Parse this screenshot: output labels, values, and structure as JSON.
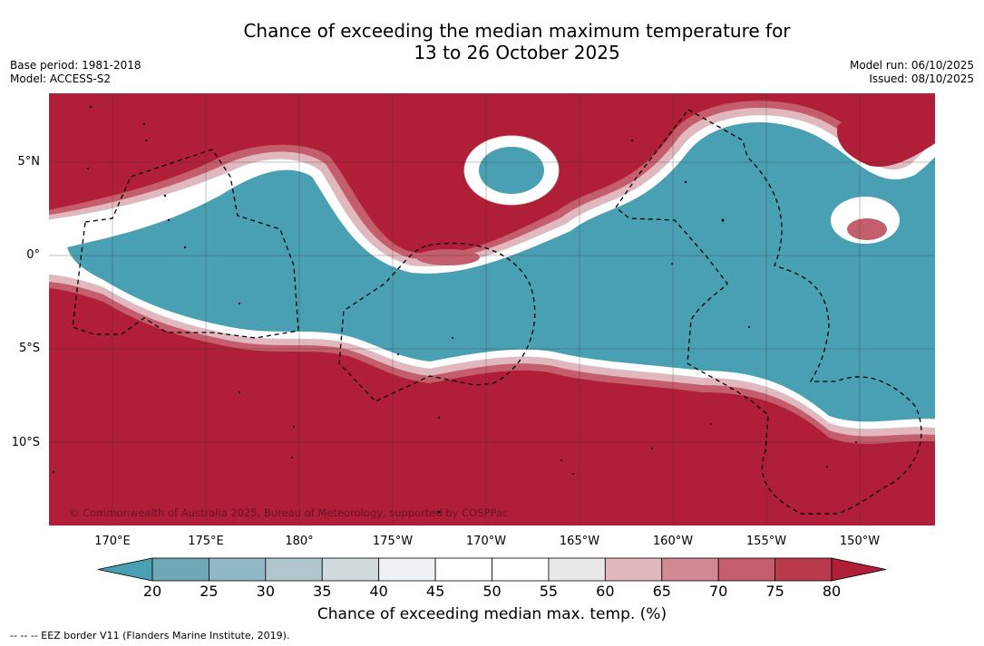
{
  "title": {
    "line1": "Chance of exceeding the median maximum temperature for",
    "line2": "13 to 26 October 2025"
  },
  "meta": {
    "base_period": "Base period: 1981-2018",
    "model": "Model: ACCESS-S2",
    "model_run": "Model run: 06/10/2025",
    "issued": "Issued: 08/10/2025"
  },
  "axes": {
    "lat_labels": [
      "5°N",
      "0°",
      "5°S",
      "10°S"
    ],
    "lon_labels": [
      "170°E",
      "175°E",
      "180°",
      "175°W",
      "170°W",
      "165°W",
      "160°W",
      "155°W",
      "150°W"
    ]
  },
  "copyright": "© Commonwealth of Australia 2025, Bureau of Meteorology, supported by COSPPac",
  "colorbar": {
    "ticks": [
      "20",
      "25",
      "30",
      "35",
      "40",
      "45",
      "50",
      "55",
      "60",
      "65",
      "70",
      "75",
      "80"
    ],
    "colors": [
      "#4aa0b3",
      "#6fa8b5",
      "#8fb9c4",
      "#afc6cc",
      "#d0d9dc",
      "#eef2f5",
      "#ffffff",
      "#ffffff",
      "#e8e8e8",
      "#e0b8be",
      "#d18a93",
      "#c45e6c",
      "#b83a4b",
      "#b01e38"
    ],
    "title": "Chance of exceeding median max. temp. (%)"
  },
  "footer": "-- -- -- EEZ border V11 (Flanders Marine Institute, 2019).",
  "palette": {
    "red": "#b01e38",
    "teal": "#4aa0b3",
    "white": "#ffffff"
  }
}
